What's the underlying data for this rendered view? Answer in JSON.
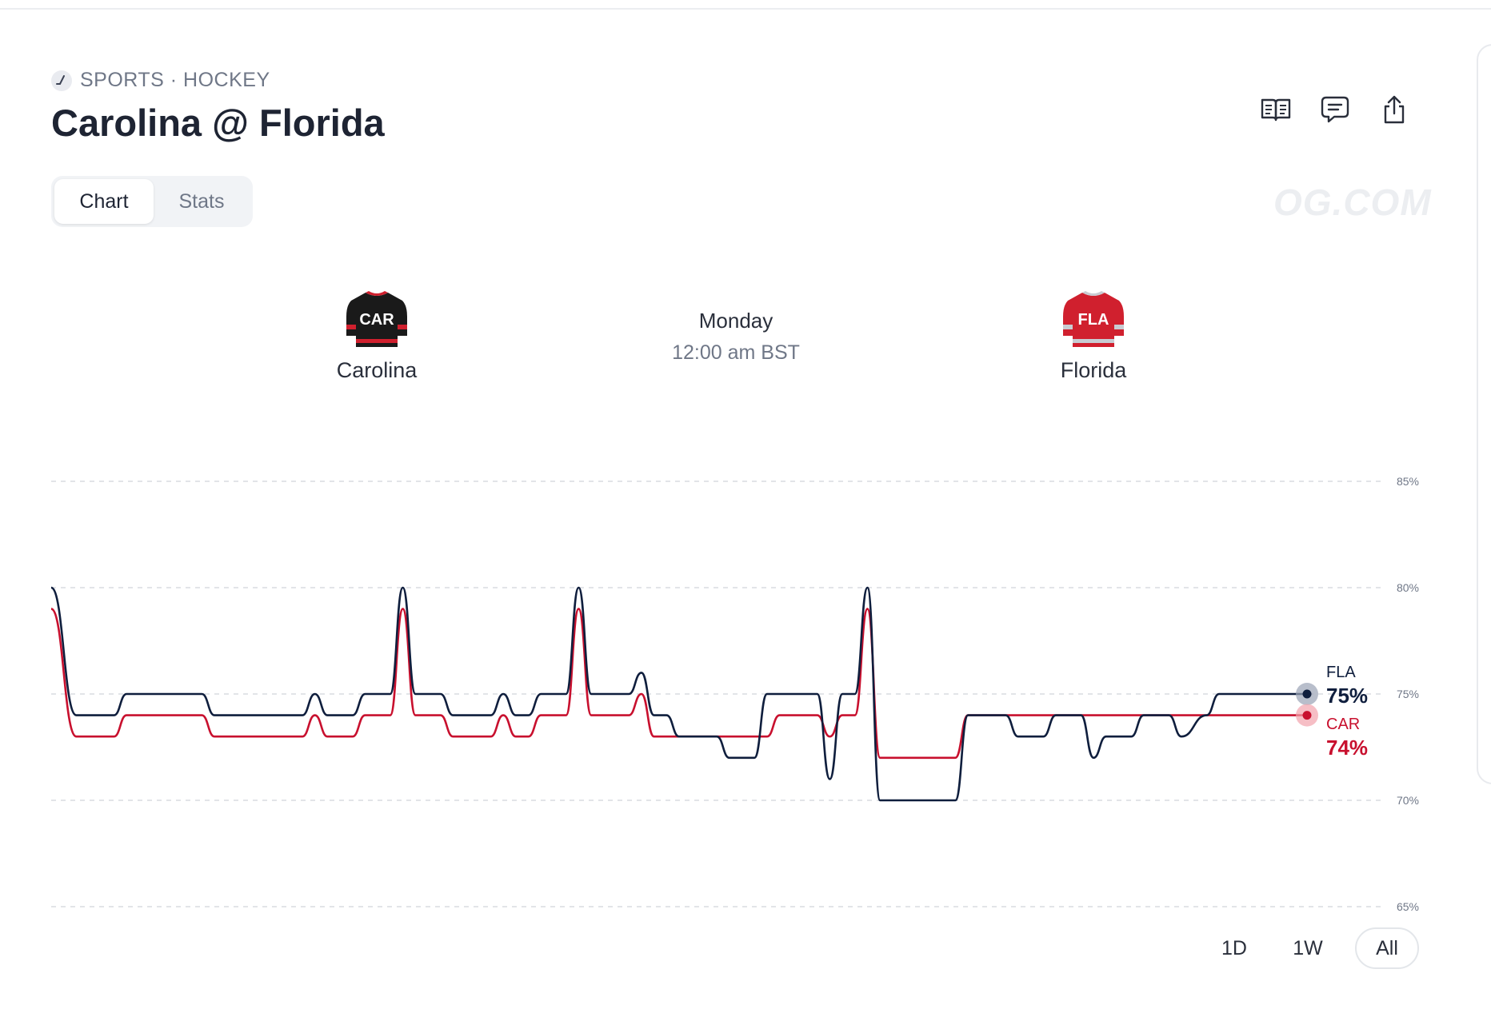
{
  "header": {
    "breadcrumb": "SPORTS · HOCKEY",
    "title": "Carolina @ Florida",
    "watermark": "OG.COM"
  },
  "tabs": [
    {
      "label": "Chart",
      "active": true
    },
    {
      "label": "Stats",
      "active": false
    }
  ],
  "actions": [
    {
      "icon": "book-icon"
    },
    {
      "icon": "comment-icon"
    },
    {
      "icon": "share-icon"
    }
  ],
  "game": {
    "away": {
      "name": "Carolina",
      "abbr": "CAR",
      "color": "#1a1a1a",
      "accent": "#d0202e"
    },
    "home": {
      "name": "Florida",
      "abbr": "FLA",
      "color": "#d0202e",
      "accent": "#c8ccd2"
    },
    "day": "Monday",
    "time": "12:00 am BST"
  },
  "range_buttons": [
    {
      "label": "1D",
      "active": false
    },
    {
      "label": "1W",
      "active": false
    },
    {
      "label": "All",
      "active": true
    }
  ],
  "chart_data": {
    "type": "line",
    "y_ticks": [
      "85%",
      "80%",
      "75%",
      "70%",
      "65%"
    ],
    "ylim": [
      65,
      85
    ],
    "x_count": 100,
    "grid": "dashed-horizontal",
    "series": [
      {
        "name": "FLA",
        "color": "#0f1e3d",
        "current_label": "75%",
        "keypoints": [
          [
            0,
            80
          ],
          [
            2,
            74
          ],
          [
            5,
            74
          ],
          [
            6,
            75
          ],
          [
            12,
            75
          ],
          [
            13,
            74
          ],
          [
            20,
            74
          ],
          [
            21,
            75
          ],
          [
            22,
            74
          ],
          [
            24,
            74
          ],
          [
            25,
            75
          ],
          [
            27,
            75
          ],
          [
            28,
            80
          ],
          [
            29,
            75
          ],
          [
            31,
            75
          ],
          [
            32,
            74
          ],
          [
            35,
            74
          ],
          [
            36,
            75
          ],
          [
            37,
            74
          ],
          [
            38,
            74
          ],
          [
            39,
            75
          ],
          [
            41,
            75
          ],
          [
            42,
            80
          ],
          [
            43,
            75
          ],
          [
            46,
            75
          ],
          [
            47,
            76
          ],
          [
            48,
            74
          ],
          [
            49,
            74
          ],
          [
            50,
            73
          ],
          [
            53,
            73
          ],
          [
            54,
            72
          ],
          [
            56,
            72
          ],
          [
            57,
            75
          ],
          [
            61,
            75
          ],
          [
            62,
            71
          ],
          [
            63,
            75
          ],
          [
            64,
            75
          ],
          [
            65,
            80
          ],
          [
            66,
            70
          ],
          [
            72,
            70
          ],
          [
            73,
            74
          ],
          [
            76,
            74
          ],
          [
            77,
            73
          ],
          [
            79,
            73
          ],
          [
            80,
            74
          ],
          [
            82,
            74
          ],
          [
            83,
            72
          ],
          [
            84,
            73
          ],
          [
            86,
            73
          ],
          [
            87,
            74
          ],
          [
            89,
            74
          ],
          [
            90,
            73
          ],
          [
            92,
            74
          ],
          [
            93,
            75
          ],
          [
            100,
            75
          ]
        ]
      },
      {
        "name": "CAR",
        "color": "#c8102e",
        "current_label": "74%",
        "keypoints": [
          [
            0,
            79
          ],
          [
            2,
            73
          ],
          [
            5,
            73
          ],
          [
            6,
            74
          ],
          [
            12,
            74
          ],
          [
            13,
            73
          ],
          [
            20,
            73
          ],
          [
            21,
            74
          ],
          [
            22,
            73
          ],
          [
            24,
            73
          ],
          [
            25,
            74
          ],
          [
            27,
            74
          ],
          [
            28,
            79
          ],
          [
            29,
            74
          ],
          [
            31,
            74
          ],
          [
            32,
            73
          ],
          [
            35,
            73
          ],
          [
            36,
            74
          ],
          [
            37,
            73
          ],
          [
            38,
            73
          ],
          [
            39,
            74
          ],
          [
            41,
            74
          ],
          [
            42,
            79
          ],
          [
            43,
            74
          ],
          [
            46,
            74
          ],
          [
            47,
            75
          ],
          [
            48,
            73
          ],
          [
            57,
            73
          ],
          [
            58,
            74
          ],
          [
            61,
            74
          ],
          [
            62,
            73
          ],
          [
            63,
            74
          ],
          [
            64,
            74
          ],
          [
            65,
            79
          ],
          [
            66,
            72
          ],
          [
            72,
            72
          ],
          [
            73,
            74
          ],
          [
            100,
            74
          ]
        ]
      }
    ]
  }
}
